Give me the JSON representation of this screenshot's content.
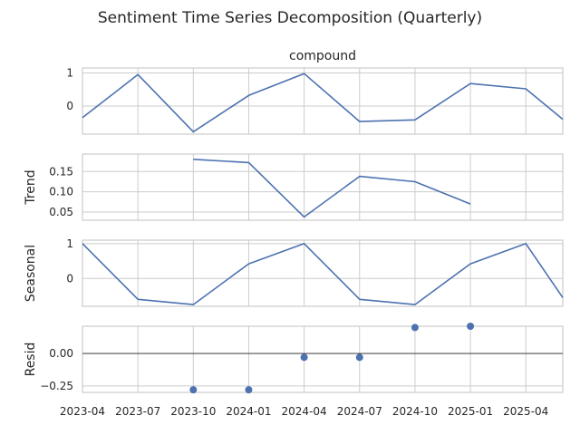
{
  "chart_data": {
    "type": "line",
    "title": "Sentiment Time Series Decomposition (Quarterly)",
    "x_ticks": [
      "2023-04",
      "2023-07",
      "2023-10",
      "2024-01",
      "2024-04",
      "2024-07",
      "2024-10",
      "2025-01",
      "2025-04"
    ],
    "x_range": [
      "2023-04",
      "2025-06"
    ],
    "grid": true,
    "line_color": "#4c72b0",
    "panels": [
      {
        "id": "compound",
        "title": "compound",
        "ylabel": "",
        "kind": "line",
        "ylim": [
          -0.85,
          1.15
        ],
        "yticks": [
          0,
          1
        ],
        "ytick_labels": [
          "0",
          "1"
        ],
        "x": [
          "2023-04",
          "2023-07",
          "2023-10",
          "2024-01",
          "2024-04",
          "2024-07",
          "2024-10",
          "2025-01",
          "2025-04",
          "2025-06"
        ],
        "y": [
          -0.35,
          0.95,
          -0.78,
          0.32,
          0.98,
          -0.47,
          -0.42,
          0.68,
          0.52,
          -0.4
        ]
      },
      {
        "id": "trend",
        "title": "",
        "ylabel": "Trend",
        "kind": "line",
        "ylim": [
          0.03,
          0.193
        ],
        "yticks": [
          0.05,
          0.1,
          0.15
        ],
        "ytick_labels": [
          "0.05",
          "0.10",
          "0.15"
        ],
        "x": [
          "2023-10",
          "2024-01",
          "2024-04",
          "2024-07",
          "2024-10",
          "2025-01"
        ],
        "y": [
          0.18,
          0.172,
          0.038,
          0.138,
          0.125,
          0.07
        ]
      },
      {
        "id": "seasonal",
        "title": "",
        "ylabel": "Seasonal",
        "kind": "line",
        "ylim": [
          -0.8,
          1.1
        ],
        "yticks": [
          0,
          1
        ],
        "ytick_labels": [
          "0",
          "1"
        ],
        "x": [
          "2023-04",
          "2023-07",
          "2023-10",
          "2024-01",
          "2024-04",
          "2024-07",
          "2024-10",
          "2025-01",
          "2025-04",
          "2025-06"
        ],
        "y": [
          1.0,
          -0.6,
          -0.75,
          0.42,
          1.0,
          -0.6,
          -0.75,
          0.42,
          1.0,
          -0.55
        ]
      },
      {
        "id": "resid",
        "title": "",
        "ylabel": "Resid",
        "kind": "scatter",
        "ylim": [
          -0.3,
          0.21
        ],
        "yticks": [
          -0.25,
          0
        ],
        "ytick_labels": [
          "−0.25",
          "0.00"
        ],
        "baseline": 0,
        "x": [
          "2023-10",
          "2024-01",
          "2024-04",
          "2024-07",
          "2024-10",
          "2025-01"
        ],
        "y": [
          -0.28,
          -0.28,
          -0.03,
          -0.03,
          0.2,
          0.21
        ]
      }
    ]
  }
}
